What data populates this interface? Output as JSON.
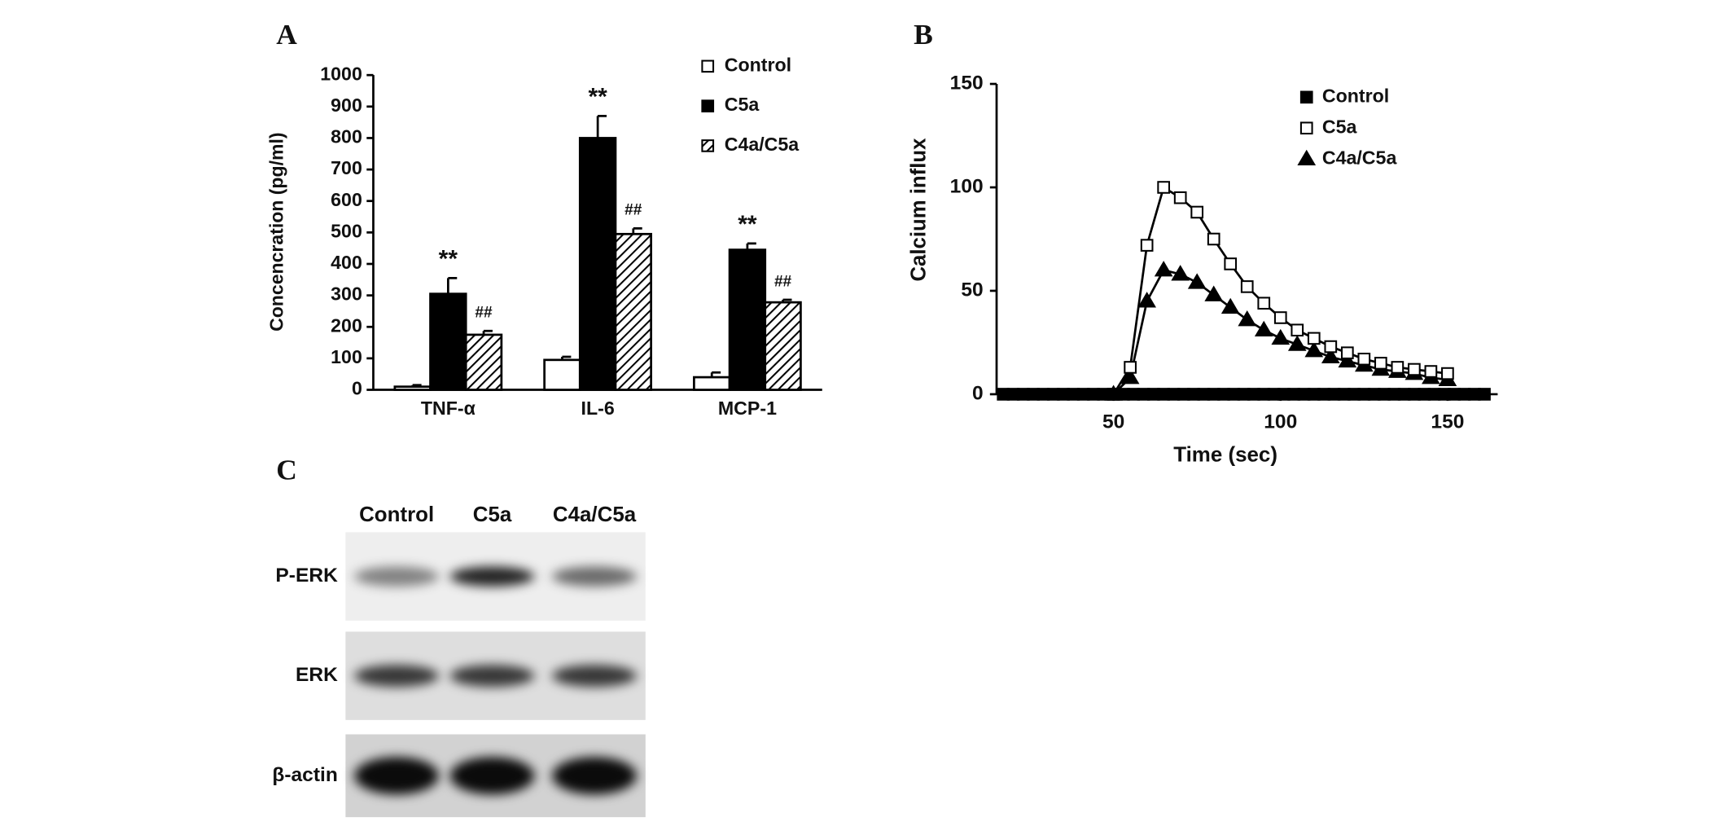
{
  "chart_data": [
    {
      "type": "bar",
      "panel": "A",
      "ylabel": "Concencration (pg/ml)",
      "categories": [
        "TNF-α",
        "IL-6",
        "MCP-1"
      ],
      "ylim": [
        0,
        1000
      ],
      "yticks": [
        0,
        100,
        200,
        300,
        400,
        500,
        600,
        700,
        800,
        900,
        1000
      ],
      "series": [
        {
          "name": "Control",
          "color": "#ffffff",
          "values": [
            10,
            95,
            40
          ],
          "errors": [
            5,
            10,
            15
          ]
        },
        {
          "name": "C5a",
          "color": "#000000",
          "values": [
            305,
            800,
            445
          ],
          "errors": [
            50,
            70,
            20
          ],
          "labels": [
            "**",
            "**",
            "**"
          ]
        },
        {
          "name": "C4a/C5a",
          "color": "#000000",
          "hatch": true,
          "values": [
            175,
            495,
            278
          ],
          "errors": [
            12,
            18,
            8
          ],
          "labels": [
            "##",
            "##",
            "##"
          ]
        }
      ]
    },
    {
      "type": "line",
      "panel": "B",
      "xlabel": "Time (sec)",
      "ylabel": "Calcium influx",
      "xlim": [
        15,
        165
      ],
      "xticks": [
        50,
        100,
        150
      ],
      "ylim": [
        0,
        150
      ],
      "yticks": [
        0,
        50,
        100,
        150
      ],
      "series": [
        {
          "name": "Control",
          "color": "#000000",
          "marker": "square",
          "filled": true,
          "x": [
            17,
            20,
            23,
            26,
            29,
            32,
            35,
            38,
            41,
            44,
            47,
            50,
            53,
            56,
            59,
            62,
            65,
            68,
            71,
            74,
            77,
            80,
            83,
            86,
            89,
            92,
            95,
            98,
            101,
            104,
            107,
            110,
            113,
            116,
            119,
            122,
            125,
            128,
            131,
            134,
            137,
            140,
            143,
            146,
            149,
            152,
            155,
            158,
            161
          ],
          "values": [
            0,
            0,
            0,
            0,
            0,
            0,
            0,
            0,
            0,
            0,
            0,
            0,
            0,
            0,
            0,
            0,
            0,
            0,
            0,
            0,
            0,
            0,
            0,
            0,
            0,
            0,
            0,
            0,
            0,
            0,
            0,
            0,
            0,
            0,
            0,
            0,
            0,
            0,
            0,
            0,
            0,
            0,
            0,
            0,
            0,
            0,
            0,
            0,
            0
          ]
        },
        {
          "name": "C5a",
          "color": "#000000",
          "marker": "square",
          "filled": false,
          "x": [
            50,
            55,
            60,
            65,
            70,
            75,
            80,
            85,
            90,
            95,
            100,
            105,
            110,
            115,
            120,
            125,
            130,
            135,
            140,
            145,
            150
          ],
          "values": [
            0,
            13,
            72,
            100,
            95,
            88,
            75,
            63,
            52,
            44,
            37,
            31,
            27,
            23,
            20,
            17,
            15,
            13,
            12,
            11,
            10
          ]
        },
        {
          "name": "C4a/C5a",
          "color": "#000000",
          "marker": "triangle",
          "filled": true,
          "x": [
            50,
            55,
            60,
            65,
            70,
            75,
            80,
            85,
            90,
            95,
            100,
            105,
            110,
            115,
            120,
            125,
            130,
            135,
            140,
            145,
            150
          ],
          "values": [
            0,
            8,
            45,
            60,
            58,
            54,
            48,
            42,
            36,
            31,
            27,
            24,
            21,
            18,
            16,
            14,
            12,
            11,
            10,
            8,
            7
          ]
        }
      ]
    },
    {
      "type": "blot",
      "panel": "C",
      "lanes": [
        "Control",
        "C5a",
        "C4a/C5a"
      ],
      "rows": [
        "P-ERK",
        "ERK",
        "β-actin"
      ]
    }
  ]
}
